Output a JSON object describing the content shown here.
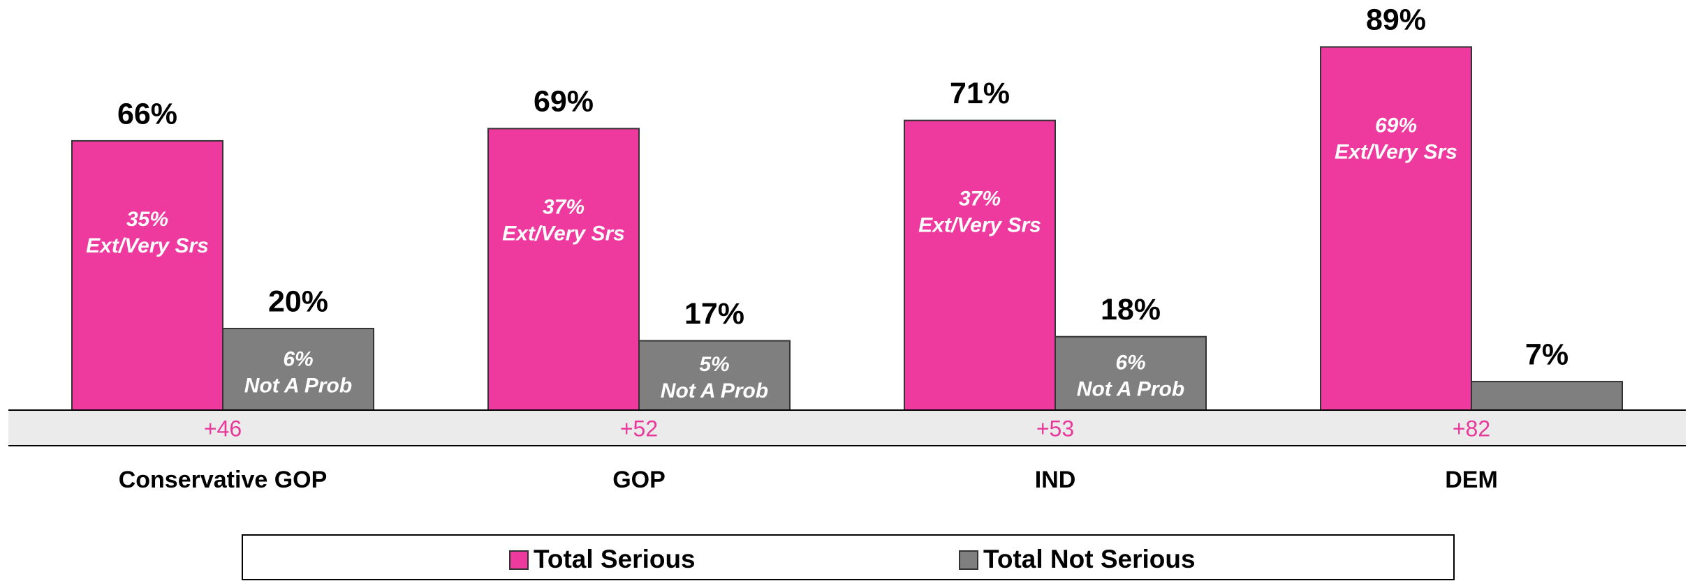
{
  "chart_data": {
    "type": "bar",
    "categories": [
      "Conservative GOP",
      "GOP",
      "IND",
      "DEM"
    ],
    "series": [
      {
        "name": "Total Serious",
        "color": "#ee3a9f",
        "values": [
          66,
          69,
          71,
          89
        ],
        "value_labels": [
          "66%",
          "69%",
          "71%",
          "89%"
        ],
        "detail_values": [
          35,
          37,
          37,
          69
        ],
        "detail_labels": [
          "35%",
          "37%",
          "37%",
          "69%"
        ],
        "detail_caption": "Ext/Very Srs"
      },
      {
        "name": "Total Not Serious",
        "color": "#7f7f7f",
        "values": [
          20,
          17,
          18,
          7
        ],
        "value_labels": [
          "20%",
          "17%",
          "18%",
          "7%"
        ],
        "detail_values": [
          6,
          5,
          6,
          null
        ],
        "detail_labels": [
          "6%",
          "5%",
          "6%",
          null
        ],
        "detail_caption": "Not A Prob"
      }
    ],
    "margins": [
      46,
      52,
      53,
      82
    ],
    "margin_labels": [
      "+46",
      "+52",
      "+53",
      "+82"
    ]
  }
}
